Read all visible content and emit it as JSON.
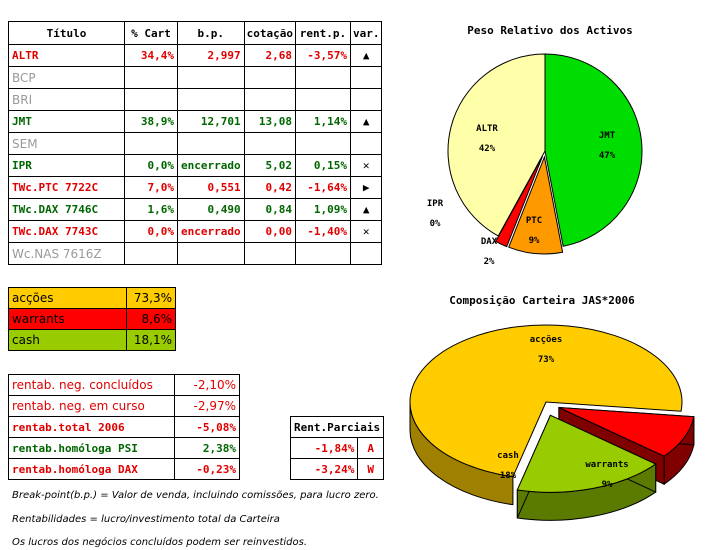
{
  "main_table": {
    "headers": [
      "Título",
      "% Cart",
      "b.p.",
      "cotação",
      "rent.p.",
      "var."
    ],
    "rows": [
      {
        "name": "ALTR",
        "pct": "34,4%",
        "bp": "2,997",
        "cot": "2,68",
        "rent": "-3,57%",
        "var": "▲",
        "color": "red"
      },
      {
        "name": "BCP",
        "pct": "",
        "bp": "",
        "cot": "",
        "rent": "",
        "var": "",
        "color": "gray"
      },
      {
        "name": "BRI",
        "pct": "",
        "bp": "",
        "cot": "",
        "rent": "",
        "var": "",
        "color": "gray"
      },
      {
        "name": "JMT",
        "pct": "38,9%",
        "bp": "12,701",
        "cot": "13,08",
        "rent": "1,14%",
        "var": "▲",
        "color": "green"
      },
      {
        "name": "SEM",
        "pct": "",
        "bp": "",
        "cot": "",
        "rent": "",
        "var": "",
        "color": "gray"
      },
      {
        "name": "IPR",
        "pct": "0,0%",
        "bp": "encerrado",
        "cot": "5,02",
        "rent": "0,15%",
        "var": "✕",
        "color": "green"
      },
      {
        "name": "TWc.PTC 7722C",
        "pct": "7,0%",
        "bp": "0,551",
        "cot": "0,42",
        "rent": "-1,64%",
        "var": "▶",
        "color": "red"
      },
      {
        "name": "TWc.DAX 7746C",
        "pct": "1,6%",
        "bp": "0,490",
        "cot": "0,84",
        "rent": "1,09%",
        "var": "▲",
        "color": "green"
      },
      {
        "name": "TWc.DAX 7743C",
        "pct": "0,0%",
        "bp": "encerrado",
        "cot": "0,00",
        "rent": "-1,40%",
        "var": "✕",
        "color": "red"
      },
      {
        "name": "Wc.NAS 7616Z",
        "pct": "",
        "bp": "",
        "cot": "",
        "rent": "",
        "var": "",
        "color": "gray"
      }
    ]
  },
  "allocation": [
    {
      "label": "acções",
      "value": "73,3%",
      "bg": "#ffcc00",
      "fg": "#000000"
    },
    {
      "label": "warrants",
      "value": "8,6%",
      "bg": "#ff0000",
      "fg": "#000000"
    },
    {
      "label": "cash",
      "value": "18,1%",
      "bg": "#99cc00",
      "fg": "#000000"
    }
  ],
  "rentab": [
    {
      "label": "rentab. neg. concluídos",
      "value": "-2,10%",
      "color": "#e00000",
      "bold": false
    },
    {
      "label": "rentab. neg. em curso",
      "value": "-2,97%",
      "color": "#e00000",
      "bold": false
    },
    {
      "label": "rentab.total 2006",
      "value": "-5,08%",
      "color": "#e00000",
      "bold": true
    },
    {
      "label": "rentab.homóloga PSI",
      "value": "2,38%",
      "color": "#006600",
      "bold": true
    },
    {
      "label": "rentab.homóloga DAX",
      "value": "-0,23%",
      "color": "#e00000",
      "bold": true
    }
  ],
  "parciais": {
    "header": "Rent.Parciais",
    "rows": [
      {
        "value": "-1,84%",
        "tag": "A"
      },
      {
        "value": "-3,24%",
        "tag": "W"
      }
    ]
  },
  "notes": [
    "Break-point(b.p.) = Valor de venda, incluindo comissões, para lucro zero.",
    "Rentabilidades = lucro/investimento total da Carteira",
    "Os lucros dos negócios concluídos podem ser reinvestidos."
  ],
  "chart_data": [
    {
      "type": "pie",
      "title": "Peso Relativo dos Activos",
      "categories": [
        "JMT",
        "PTC",
        "DAX",
        "IPR",
        "ALTR"
      ],
      "values": [
        47,
        9,
        2,
        0,
        42
      ],
      "labels": [
        "47%",
        "9%",
        "2%",
        "0%",
        "42%"
      ],
      "colors": [
        "#00dd00",
        "#ff9900",
        "#ff0000",
        "#ffffff",
        "#ffffaa"
      ]
    },
    {
      "type": "pie",
      "title": "Composição Carteira JAS*2006",
      "categories": [
        "acções",
        "warrants",
        "cash"
      ],
      "values": [
        73,
        9,
        18
      ],
      "labels": [
        "73%",
        "9%",
        "18%"
      ],
      "colors": [
        "#ffcc00",
        "#ff0000",
        "#99cc00"
      ]
    }
  ]
}
